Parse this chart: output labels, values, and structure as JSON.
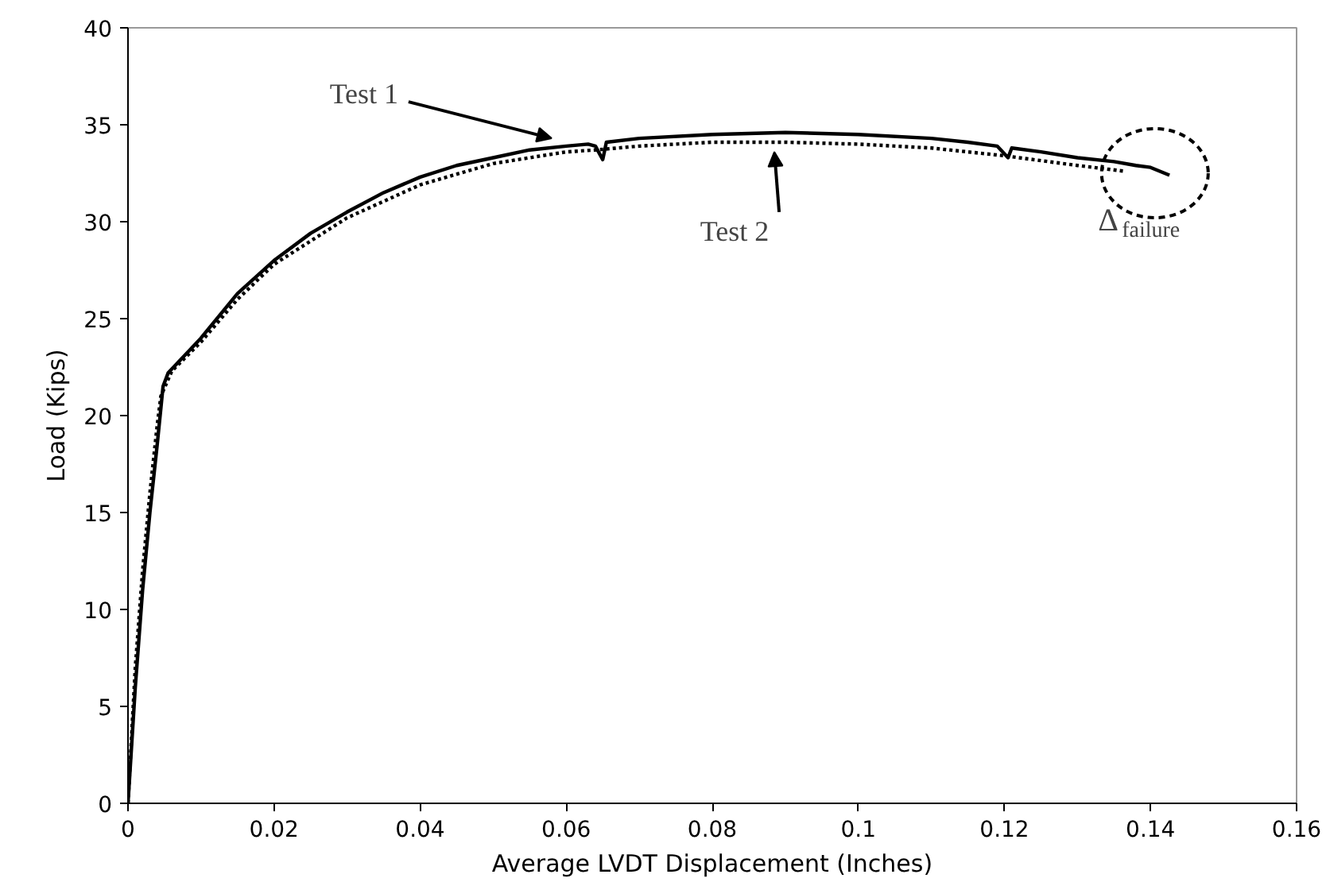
{
  "chart_data": {
    "type": "line",
    "xlabel": "Average LVDT Displacement (Inches)",
    "ylabel": "Load (Kips)",
    "xlim": [
      0,
      0.16
    ],
    "xticks": [
      0,
      0.02,
      0.04,
      0.06,
      0.08,
      0.1,
      0.12,
      0.14,
      0.16
    ],
    "ylim": [
      0,
      40
    ],
    "yticks": [
      0,
      5,
      10,
      15,
      20,
      25,
      30,
      35,
      40
    ],
    "grid": false,
    "series": [
      {
        "color": "#000000",
        "line_style": "solid",
        "x": [
          0,
          0.001,
          0.002,
          0.003,
          0.004,
          0.0048,
          0.0055,
          0.008,
          0.01,
          0.015,
          0.02,
          0.025,
          0.03,
          0.035,
          0.04,
          0.045,
          0.05,
          0.055,
          0.06,
          0.063,
          0.064,
          0.065,
          0.0655,
          0.07,
          0.08,
          0.09,
          0.1,
          0.11,
          0.115,
          0.119,
          0.1205,
          0.121,
          0.125,
          0.13,
          0.135,
          0.138,
          0.14,
          0.1426
        ],
        "values": [
          0,
          6,
          11,
          15,
          18.5,
          21.5,
          22.2,
          23.2,
          24,
          26.3,
          28,
          29.4,
          30.5,
          31.5,
          32.3,
          32.9,
          33.3,
          33.7,
          33.9,
          34.0,
          33.9,
          33.2,
          34.1,
          34.3,
          34.5,
          34.6,
          34.5,
          34.3,
          34.1,
          33.9,
          33.3,
          33.8,
          33.6,
          33.3,
          33.1,
          32.9,
          32.8,
          32.4
        ]
      },
      {
        "color": "#000000",
        "line_style": "dotted",
        "x": [
          0,
          0.001,
          0.002,
          0.003,
          0.004,
          0.0045,
          0.006,
          0.01,
          0.015,
          0.02,
          0.03,
          0.04,
          0.05,
          0.06,
          0.064,
          0.07,
          0.08,
          0.09,
          0.1,
          0.11,
          0.12,
          0.13,
          0.1365
        ],
        "values": [
          0,
          7,
          12,
          16,
          19.5,
          21,
          22.3,
          23.8,
          26,
          27.8,
          30.2,
          31.9,
          33,
          33.6,
          33.7,
          33.9,
          34.1,
          34.1,
          34.0,
          33.8,
          33.4,
          32.9,
          32.6
        ]
      }
    ],
    "annotations": [
      {
        "text": "Test 1",
        "x": 0.058,
        "y": 33.9
      },
      {
        "text": "Test 2",
        "x": 0.0885,
        "y": 34.0
      },
      {
        "text": "Δ$_{failure}$",
        "x": 0.1426,
        "y": 32.4
      }
    ]
  }
}
